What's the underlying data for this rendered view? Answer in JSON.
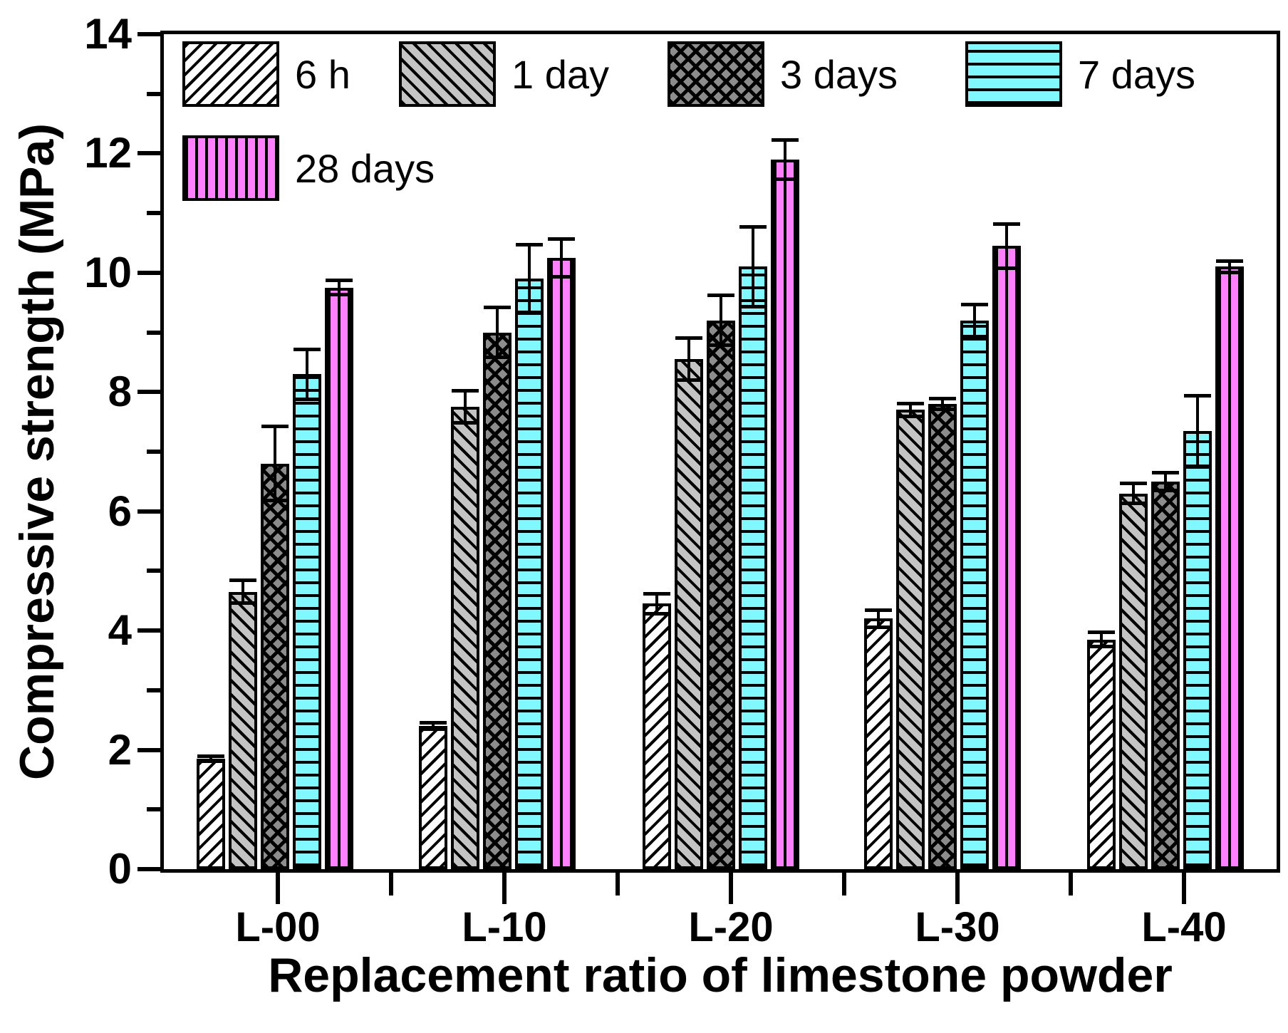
{
  "chart_data": {
    "type": "bar",
    "title": "",
    "xlabel": "Replacement ratio of limestone powder",
    "ylabel": "Compressive strength (MPa)",
    "ylim": [
      0,
      14
    ],
    "y_major_ticks": [
      0,
      2,
      4,
      6,
      8,
      10,
      12,
      14
    ],
    "y_minor_tick_step": 1,
    "grid": false,
    "legend_position": "inside top-left, two rows, no frame",
    "error_bars": "symmetric, black stems with caps",
    "categories": [
      "L-00",
      "L-10",
      "L-20",
      "L-30",
      "L-40"
    ],
    "series": [
      {
        "name": "6 h",
        "pattern": "diagonal-up-hatch",
        "fill": "#ffffff",
        "values": [
          1.85,
          2.4,
          4.45,
          4.2,
          3.85
        ],
        "errors": [
          0.07,
          0.08,
          0.2,
          0.17,
          0.15
        ]
      },
      {
        "name": "1 day",
        "pattern": "diagonal-down-hatch",
        "fill": "#c4c4c4",
        "values": [
          4.65,
          7.75,
          8.55,
          7.7,
          6.3
        ],
        "errors": [
          0.22,
          0.3,
          0.38,
          0.14,
          0.2
        ]
      },
      {
        "name": "3 days",
        "pattern": "diagonal-crosshatch",
        "fill": "#8c8c8c",
        "values": [
          6.8,
          9.0,
          9.2,
          7.8,
          6.5
        ],
        "errors": [
          0.65,
          0.45,
          0.45,
          0.12,
          0.18
        ]
      },
      {
        "name": "7 days",
        "pattern": "horizontal-lines",
        "fill": "#7ff9ff",
        "values": [
          8.3,
          9.9,
          10.1,
          9.2,
          7.35
        ],
        "errors": [
          0.45,
          0.6,
          0.7,
          0.3,
          0.62
        ]
      },
      {
        "name": "28 days",
        "pattern": "vertical-lines",
        "fill": "#ff80ff",
        "values": [
          9.75,
          10.25,
          11.9,
          10.45,
          10.1
        ],
        "errors": [
          0.15,
          0.35,
          0.36,
          0.4,
          0.12
        ]
      }
    ],
    "colors": {
      "axis": "#000000",
      "bar_outline": "#000000",
      "cyan_series": "#7ff9ff",
      "magenta_series": "#ff80ff",
      "light_gray_series": "#c4c4c4",
      "dark_gray_series": "#8c8c8c"
    }
  }
}
